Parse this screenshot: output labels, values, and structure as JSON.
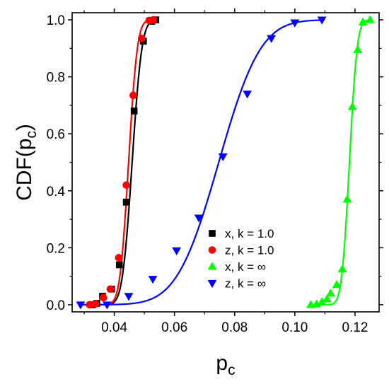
{
  "chart_data": {
    "type": "scatter",
    "title": "",
    "xlabel": "p",
    "xlabel_sub": "c",
    "ylabel": "CDF(p",
    "ylabel_sub": "c",
    "ylabel_close": ")",
    "xlim": [
      0.026,
      0.128
    ],
    "ylim": [
      -0.025,
      1.025
    ],
    "x_ticks": [
      {
        "value": 0.04,
        "label": "0.04"
      },
      {
        "value": 0.06,
        "label": "0.06"
      },
      {
        "value": 0.08,
        "label": "0.08"
      },
      {
        "value": 0.1,
        "label": "0.10"
      },
      {
        "value": 0.12,
        "label": "0.12"
      }
    ],
    "y_ticks": [
      {
        "value": 0.0,
        "label": "0.0"
      },
      {
        "value": 0.2,
        "label": "0.2"
      },
      {
        "value": 0.4,
        "label": "0.4"
      },
      {
        "value": 0.6,
        "label": "0.6"
      },
      {
        "value": 0.8,
        "label": "0.8"
      },
      {
        "value": 1.0,
        "label": "1.0"
      }
    ],
    "grid": false,
    "legend_position": "bottom-right",
    "series": [
      {
        "name": "x, k = 1.0",
        "marker": "square",
        "color": "#000000",
        "fit_color": "#000000",
        "fit": {
          "mu": 0.04594,
          "sigma": 0.00254
        },
        "x": [
          0.0328,
          0.0342,
          0.0361,
          0.0391,
          0.0417,
          0.044,
          0.0466,
          0.0497,
          0.0525,
          0.0538
        ],
        "y": [
          0.0,
          0.005,
          0.03,
          0.055,
          0.14,
          0.36,
          0.68,
          0.925,
          0.995,
          1.0
        ]
      },
      {
        "name": "z, k = 1.0",
        "marker": "circle",
        "color": "#ff0000",
        "fit_color": "#ff0000",
        "fit": {
          "mu": 0.04476,
          "sigma": 0.00228
        },
        "x": [
          0.0318,
          0.0338,
          0.0364,
          0.0387,
          0.0415,
          0.044,
          0.0463,
          0.0491,
          0.0516,
          0.053
        ],
        "y": [
          0.0,
          0.003,
          0.025,
          0.055,
          0.165,
          0.42,
          0.735,
          0.935,
          0.998,
          1.0
        ]
      },
      {
        "name": "x, k = ∞",
        "marker": "triangle-up",
        "color": "#00ff00",
        "fit_color": "#00ff00",
        "fit": {
          "mu": 0.11814,
          "sigma": 0.00202
        },
        "x": [
          0.1053,
          0.1072,
          0.109,
          0.1107,
          0.1119,
          0.1139,
          0.1158,
          0.1174,
          0.1191,
          0.1209,
          0.1226,
          0.125
        ],
        "y": [
          0.0,
          0.002,
          0.01,
          0.02,
          0.04,
          0.07,
          0.125,
          0.37,
          0.695,
          0.895,
          0.992,
          1.0
        ]
      },
      {
        "name": "z, k = ∞",
        "marker": "triangle-down",
        "color": "#0000ff",
        "fit_color": "#0000ff",
        "fit": {
          "mu": 0.07472,
          "sigma": 0.01093
        },
        "x": [
          0.0288,
          0.0376,
          0.0448,
          0.0528,
          0.0607,
          0.0681,
          0.0761,
          0.0842,
          0.0922,
          0.1,
          0.109
        ],
        "y": [
          0.0,
          0.0,
          0.03,
          0.09,
          0.19,
          0.305,
          0.52,
          0.74,
          0.935,
          0.99,
          1.0
        ]
      }
    ]
  }
}
